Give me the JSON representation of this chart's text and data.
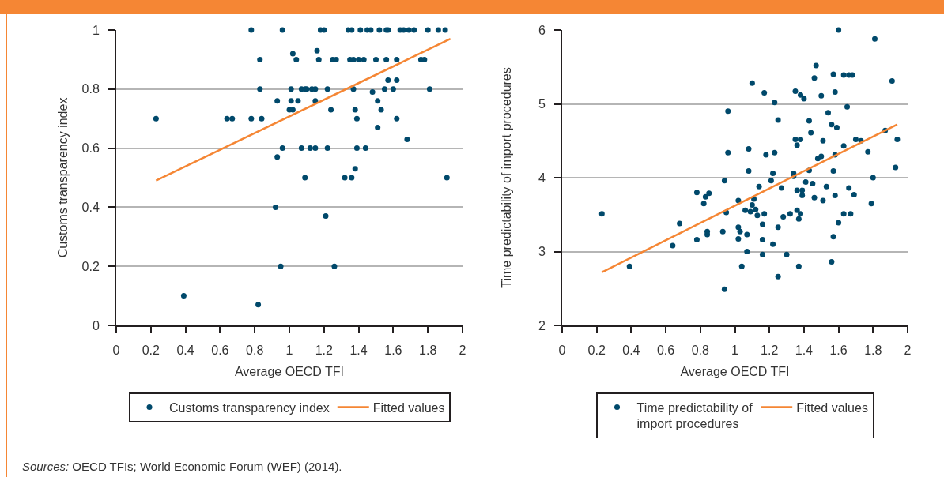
{
  "chart_data": [
    {
      "type": "scatter",
      "xlabel": "Average OECD TFI",
      "ylabel": "Customs transparency index",
      "xlim": [
        0,
        2
      ],
      "xticks": [
        0,
        0.2,
        0.4,
        0.6,
        0.8,
        1,
        1.2,
        1.4,
        1.6,
        1.8,
        2
      ],
      "ylim": [
        0,
        1
      ],
      "yticks": [
        0,
        0.2,
        0.4,
        0.6,
        0.8,
        1
      ],
      "grid": "y",
      "legend": "bottom",
      "series": [
        {
          "name": "Customs transparency index",
          "type": "scatter",
          "marker": "circle",
          "color": "#00496b",
          "x": [
            0.23,
            0.39,
            0.64,
            0.67,
            0.78,
            0.78,
            0.82,
            0.83,
            0.83,
            0.84,
            0.96,
            0.93,
            0.96,
            0.93,
            0.92,
            0.95,
            1.0,
            1.02,
            1.18,
            1.2,
            1.34,
            1.36,
            1.41,
            1.45,
            1.47,
            1.52,
            1.56,
            1.57,
            1.64,
            1.66,
            1.69,
            1.72,
            1.8,
            1.86,
            1.9,
            1.16,
            1.02,
            1.04,
            1.17,
            1.25,
            1.27,
            1.35,
            1.37,
            1.4,
            1.43,
            1.5,
            1.56,
            1.62,
            1.76,
            1.78,
            1.57,
            1.62,
            1.01,
            1.07,
            1.09,
            1.1,
            1.13,
            1.15,
            1.22,
            1.37,
            1.55,
            1.6,
            1.81,
            1.48,
            1.01,
            1.05,
            1.15,
            1.51,
            1.24,
            1.38,
            1.53,
            1.39,
            1.62,
            1.51,
            1.68,
            1.07,
            1.12,
            1.15,
            1.22,
            1.39,
            1.44,
            1.38,
            1.09,
            1.32,
            1.36,
            1.91,
            1.21,
            1.26
          ],
          "values": [
            0.7,
            0.1,
            0.7,
            0.7,
            1.0,
            0.7,
            0.07,
            0.9,
            0.8,
            0.7,
            1.0,
            0.76,
            0.6,
            0.57,
            0.4,
            0.2,
            0.73,
            0.73,
            1.0,
            1.0,
            1.0,
            1.0,
            1.0,
            1.0,
            1.0,
            1.0,
            1.0,
            1.0,
            1.0,
            1.0,
            1.0,
            1.0,
            1.0,
            1.0,
            1.0,
            0.93,
            0.92,
            0.9,
            0.9,
            0.9,
            0.9,
            0.9,
            0.9,
            0.9,
            0.9,
            0.9,
            0.9,
            0.9,
            0.9,
            0.9,
            0.83,
            0.83,
            0.8,
            0.8,
            0.8,
            0.8,
            0.8,
            0.8,
            0.8,
            0.8,
            0.8,
            0.8,
            0.8,
            0.79,
            0.76,
            0.76,
            0.76,
            0.76,
            0.73,
            0.73,
            0.73,
            0.7,
            0.7,
            0.67,
            0.63,
            0.6,
            0.6,
            0.6,
            0.6,
            0.6,
            0.6,
            0.53,
            0.5,
            0.5,
            0.5,
            0.5,
            0.37,
            0.2
          ]
        },
        {
          "name": "Fitted values",
          "type": "line",
          "marker": "none",
          "line_style": "solid",
          "color": "#f58634",
          "x": [
            0.23,
            1.93
          ],
          "values": [
            0.49,
            0.97
          ]
        }
      ],
      "annotations": [
        "Sources: OECD TFIs; World Economic Forum (WEF) (2014)."
      ]
    },
    {
      "type": "scatter",
      "xlabel": "Average OECD TFI",
      "ylabel": "Time predictability of import procedures",
      "xlim": [
        0,
        2
      ],
      "xticks": [
        0,
        0.2,
        0.4,
        0.6,
        0.8,
        1,
        1.2,
        1.4,
        1.6,
        1.8,
        2
      ],
      "ylim": [
        2,
        6
      ],
      "yticks": [
        2,
        3,
        4,
        5,
        6
      ],
      "grid": "y",
      "legend": "bottom",
      "series": [
        {
          "name": "Time predictability of import procedures",
          "type": "scatter",
          "marker": "circle",
          "color": "#00496b",
          "x": [
            0.23,
            0.39,
            0.64,
            0.68,
            0.78,
            0.78,
            0.82,
            0.83,
            0.85,
            0.84,
            0.84,
            0.93,
            0.94,
            0.94,
            0.95,
            0.96,
            0.96,
            1.6,
            1.81,
            1.47,
            1.46,
            1.57,
            1.63,
            1.66,
            1.68,
            1.91,
            1.1,
            1.17,
            1.35,
            1.38,
            1.4,
            1.5,
            1.58,
            1.23,
            1.65,
            1.54,
            1.25,
            1.43,
            1.56,
            1.59,
            1.87,
            1.44,
            1.35,
            1.38,
            1.36,
            1.51,
            1.7,
            1.73,
            1.94,
            1.63,
            1.08,
            1.23,
            1.77,
            1.18,
            1.48,
            1.5,
            1.58,
            1.93,
            1.08,
            1.22,
            1.34,
            1.34,
            1.43,
            1.57,
            1.8,
            1.21,
            1.14,
            1.27,
            1.41,
            1.45,
            1.53,
            1.66,
            1.36,
            1.39,
            1.39,
            1.46,
            1.58,
            1.69,
            1.51,
            1.79,
            1.02,
            1.11,
            1.1,
            1.12,
            1.09,
            1.06,
            1.13,
            1.17,
            1.36,
            1.38,
            1.32,
            1.28,
            1.37,
            1.63,
            1.67,
            1.16,
            1.25,
            1.6,
            1.02,
            1.03,
            1.07,
            1.02,
            1.16,
            1.22,
            1.57,
            1.07,
            1.16,
            1.3,
            1.04,
            1.37,
            1.56,
            1.25
          ],
          "values": [
            3.51,
            2.8,
            3.08,
            3.38,
            3.16,
            3.8,
            3.65,
            3.74,
            3.79,
            3.27,
            3.23,
            3.27,
            2.49,
            3.96,
            3.53,
            4.9,
            4.34,
            6.0,
            5.88,
            5.52,
            5.35,
            5.4,
            5.39,
            5.39,
            5.39,
            5.31,
            5.28,
            5.15,
            5.17,
            5.12,
            5.07,
            5.11,
            5.16,
            5.02,
            4.96,
            4.88,
            4.78,
            4.77,
            4.72,
            4.68,
            4.64,
            4.61,
            4.52,
            4.52,
            4.44,
            4.5,
            4.52,
            4.5,
            4.52,
            4.43,
            4.39,
            4.34,
            4.35,
            4.31,
            4.26,
            4.29,
            4.31,
            4.14,
            4.09,
            4.06,
            4.06,
            4.02,
            4.1,
            4.09,
            4.0,
            3.96,
            3.88,
            3.86,
            3.94,
            3.92,
            3.88,
            3.86,
            3.83,
            3.83,
            3.76,
            3.73,
            3.76,
            3.77,
            3.69,
            3.65,
            3.69,
            3.71,
            3.63,
            3.57,
            3.54,
            3.56,
            3.49,
            3.51,
            3.56,
            3.51,
            3.51,
            3.47,
            3.44,
            3.51,
            3.51,
            3.37,
            3.33,
            3.39,
            3.33,
            3.27,
            3.23,
            3.17,
            3.16,
            3.1,
            3.2,
            3.0,
            2.96,
            2.96,
            2.8,
            2.8,
            2.86,
            2.66
          ]
        },
        {
          "name": "Fitted values",
          "type": "line",
          "marker": "none",
          "line_style": "solid",
          "color": "#f58634",
          "x": [
            0.23,
            1.94
          ],
          "values": [
            2.72,
            4.72
          ]
        }
      ]
    }
  ]
}
